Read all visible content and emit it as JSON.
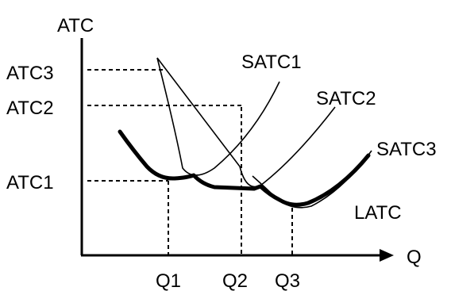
{
  "diagram": {
    "y_axis_label": "ATC",
    "x_axis_label": "Q",
    "y_ticks": [
      "ATC3",
      "ATC2",
      "ATC1"
    ],
    "x_ticks": [
      "Q1",
      "Q2",
      "Q3"
    ],
    "curves": {
      "satc1": "SATC1",
      "satc2": "SATC2",
      "satc3": "SATC3",
      "latc": "LATC"
    }
  }
}
